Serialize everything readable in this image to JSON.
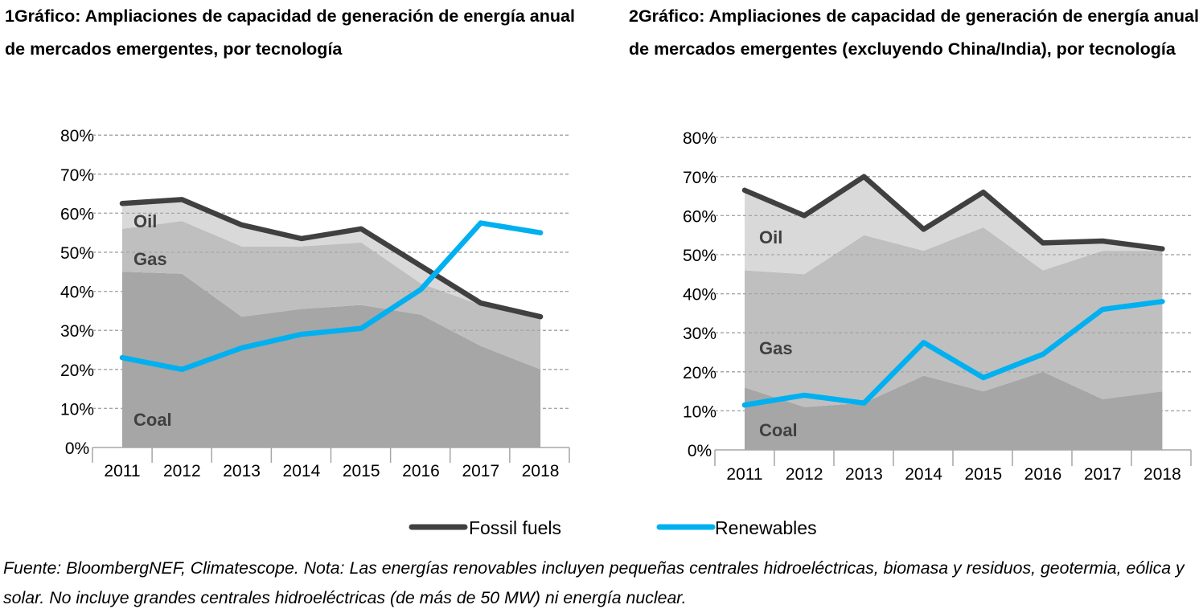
{
  "colors": {
    "coal": "#a6a6a6",
    "gas": "#bfbfbf",
    "oil": "#d9d9d9",
    "fossil": "#404040",
    "renewables": "#00b0f0",
    "grid": "#a6a6a6"
  },
  "legend": {
    "fossil_label": "Fossil fuels",
    "renewables_label": "Renewables"
  },
  "source_note": "Fuente: BloombergNEF, Climatescope. Nota: Las energías renovables incluyen pequeñas centrales hidroeléctricas, biomasa y residuos, geotermia, eólica y solar. No incluye grandes centrales hidroeléctricas (de más de 50 MW) ni energía nuclear.",
  "chart_data": [
    {
      "type": "area",
      "title": "1Gráfico: Ampliaciones de capacidad de generación de energía anual de mercados emergentes, por tecnología",
      "categories": [
        "2011",
        "2012",
        "2013",
        "2014",
        "2015",
        "2016",
        "2017",
        "2018"
      ],
      "yticks": [
        "0%",
        "10%",
        "20%",
        "30%",
        "40%",
        "50%",
        "60%",
        "70%",
        "80%"
      ],
      "ylim": [
        0,
        80
      ],
      "grid": true,
      "stack_labels": [
        "Oil",
        "Gas",
        "Coal"
      ],
      "series": [
        {
          "name": "Coal",
          "kind": "area",
          "values": [
            45,
            44.5,
            33.5,
            35.5,
            36.5,
            34,
            26,
            20
          ]
        },
        {
          "name": "Gas",
          "kind": "area",
          "values": [
            11,
            13.5,
            18,
            16,
            16,
            8,
            10.5,
            13
          ]
        },
        {
          "name": "Oil",
          "kind": "area",
          "values": [
            6,
            5,
            5,
            1.5,
            3.5,
            4.5,
            0.5,
            0
          ]
        },
        {
          "name": "Fossil fuels",
          "kind": "line",
          "values": [
            62.5,
            63.5,
            57,
            53.5,
            56,
            46.5,
            37,
            33.5
          ]
        },
        {
          "name": "Renewables",
          "kind": "line",
          "values": [
            23,
            20,
            25.5,
            29,
            30.5,
            40.5,
            57.5,
            55
          ]
        }
      ]
    },
    {
      "type": "area",
      "title": "2Gráfico: Ampliaciones de capacidad de generación de energía anual de mercados emergentes (excluyendo China/India), por tecnología",
      "categories": [
        "2011",
        "2012",
        "2013",
        "2014",
        "2015",
        "2016",
        "2017",
        "2018"
      ],
      "yticks": [
        "0%",
        "10%",
        "20%",
        "30%",
        "40%",
        "50%",
        "60%",
        "70%",
        "80%"
      ],
      "ylim": [
        0,
        80
      ],
      "grid": true,
      "stack_labels": [
        "Oil",
        "Gas",
        "Coal"
      ],
      "series": [
        {
          "name": "Coal",
          "kind": "area",
          "values": [
            16,
            11,
            12,
            19,
            15,
            20,
            13,
            15
          ]
        },
        {
          "name": "Gas",
          "kind": "area",
          "values": [
            30,
            34,
            43,
            32,
            42,
            26,
            38,
            36
          ]
        },
        {
          "name": "Oil",
          "kind": "area",
          "values": [
            20,
            15,
            15,
            5,
            8.5,
            7,
            2.5,
            0.5
          ]
        },
        {
          "name": "Fossil fuels",
          "kind": "line",
          "values": [
            66.5,
            60,
            70,
            56.5,
            66,
            53,
            53.5,
            51.5
          ]
        },
        {
          "name": "Renewables",
          "kind": "line",
          "values": [
            11.5,
            14,
            12,
            27.5,
            18.5,
            24.5,
            36,
            38
          ]
        }
      ]
    }
  ]
}
